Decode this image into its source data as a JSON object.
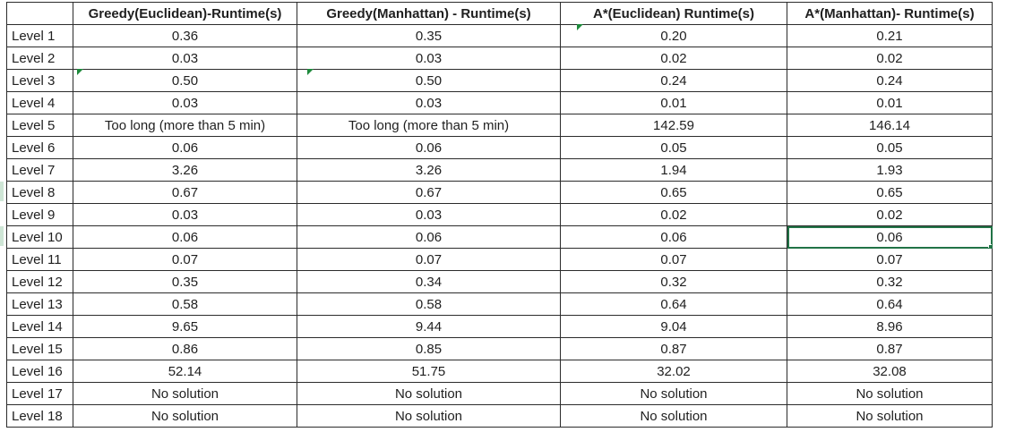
{
  "headers": [
    "",
    "Greedy(Euclidean)-Runtime(s)",
    "Greedy(Manhattan) - Runtime(s)",
    "A*(Euclidean) Runtime(s)",
    "A*(Manhattan)- Runtime(s)"
  ],
  "rows": [
    {
      "label": "Level 1",
      "cells": [
        "0.36",
        "0.35",
        "0.20",
        "0.21"
      ]
    },
    {
      "label": "Level 2",
      "cells": [
        "0.03",
        "0.03",
        "0.02",
        "0.02"
      ]
    },
    {
      "label": "Level 3",
      "cells": [
        "0.50",
        "0.50",
        "0.24",
        "0.24"
      ]
    },
    {
      "label": "Level 4",
      "cells": [
        "0.03",
        "0.03",
        "0.01",
        "0.01"
      ]
    },
    {
      "label": "Level 5",
      "cells": [
        "Too long (more than 5 min)",
        "Too long (more than 5 min)",
        "142.59",
        "146.14"
      ]
    },
    {
      "label": "Level 6",
      "cells": [
        "0.06",
        "0.06",
        "0.05",
        "0.05"
      ]
    },
    {
      "label": "Level 7",
      "cells": [
        "3.26",
        "3.26",
        "1.94",
        "1.93"
      ]
    },
    {
      "label": "Level 8",
      "cells": [
        "0.67",
        "0.67",
        "0.65",
        "0.65"
      ]
    },
    {
      "label": "Level 9",
      "cells": [
        "0.03",
        "0.03",
        "0.02",
        "0.02"
      ]
    },
    {
      "label": "Level 10",
      "cells": [
        "0.06",
        "0.06",
        "0.06",
        "0.06"
      ]
    },
    {
      "label": "Level 11",
      "cells": [
        "0.07",
        "0.07",
        "0.07",
        "0.07"
      ]
    },
    {
      "label": "Level 12",
      "cells": [
        "0.35",
        "0.34",
        "0.32",
        "0.32"
      ]
    },
    {
      "label": "Level 13",
      "cells": [
        "0.58",
        "0.58",
        "0.64",
        "0.64"
      ]
    },
    {
      "label": "Level 14",
      "cells": [
        "9.65",
        "9.44",
        "9.04",
        "8.96"
      ]
    },
    {
      "label": "Level 15",
      "cells": [
        "0.86",
        "0.85",
        "0.87",
        "0.87"
      ]
    },
    {
      "label": "Level 16",
      "cells": [
        "52.14",
        "51.75",
        "32.02",
        "32.08"
      ]
    },
    {
      "label": "Level 17",
      "cells": [
        "No solution",
        "No solution",
        "No solution",
        "No solution"
      ]
    },
    {
      "label": "Level 18",
      "cells": [
        "No solution",
        "No solution",
        "No solution",
        "No solution"
      ]
    }
  ],
  "selection": {
    "row_label": "Level 10",
    "column_header": "A*(Manhattan)- Runtime(s)"
  },
  "colors": {
    "selection": "#217346",
    "comment_indicator": "#1e8a3c",
    "grid": "#2b2b2b"
  }
}
